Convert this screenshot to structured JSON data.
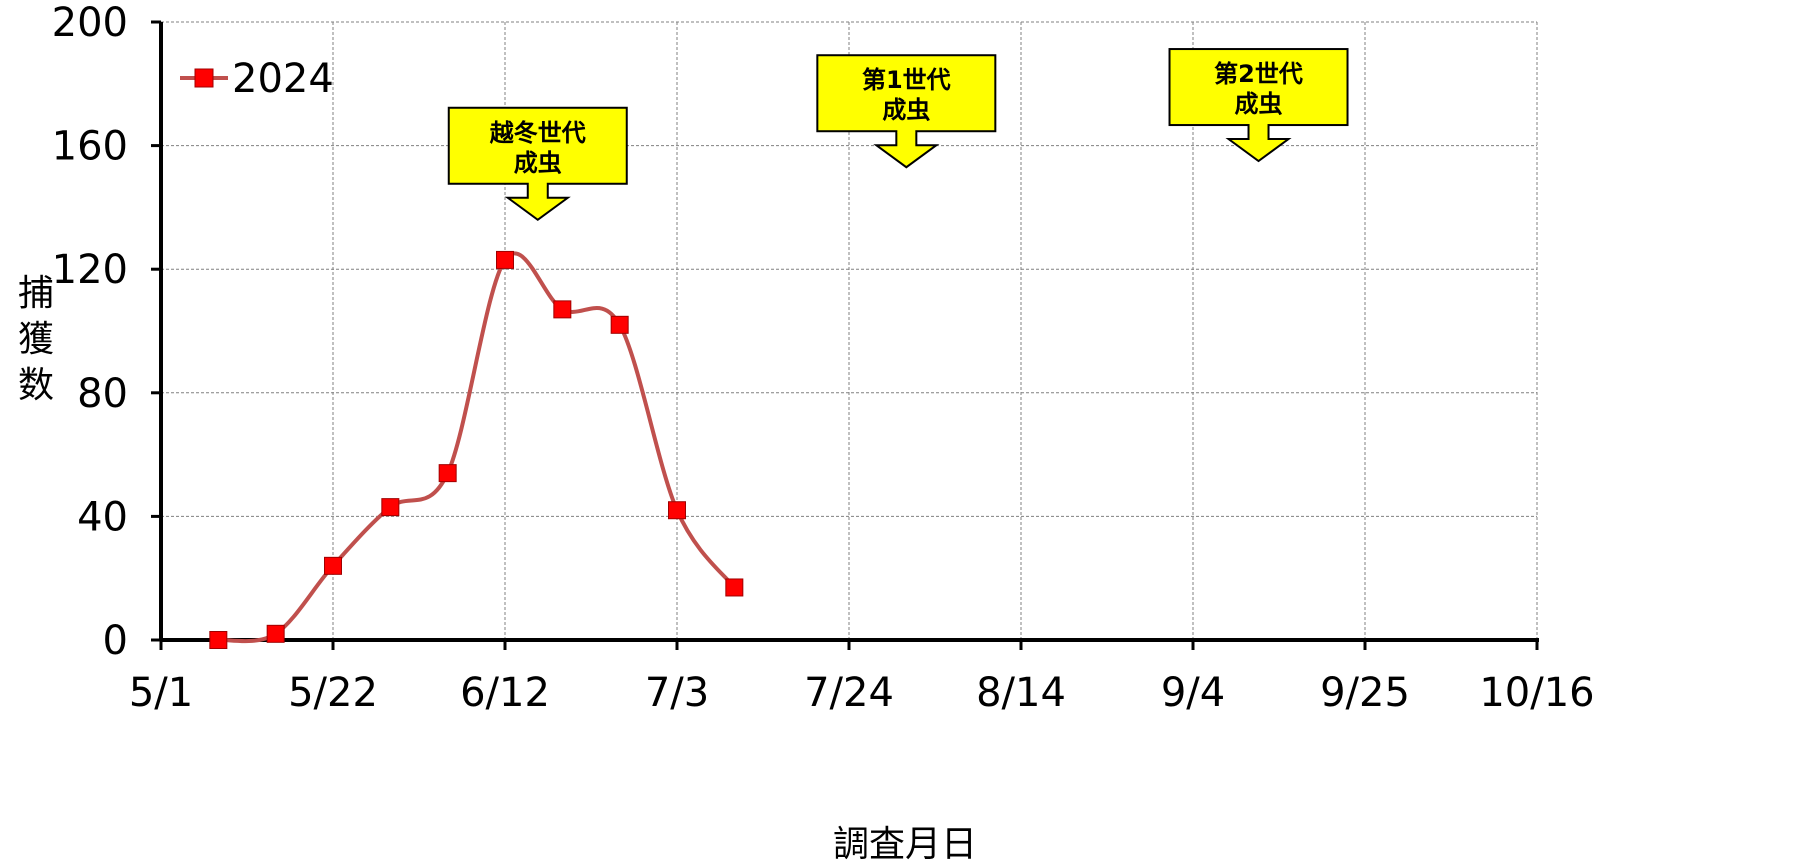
{
  "chart_data": {
    "type": "line",
    "xlabel": "調査月日",
    "ylabel": "捕獲数",
    "xlim": [
      "5/1",
      "10/16"
    ],
    "ylim": [
      0,
      200
    ],
    "x_tick_labels": [
      "5/1",
      "5/22",
      "6/12",
      "7/3",
      "7/24",
      "8/14",
      "9/4",
      "9/25",
      "10/16"
    ],
    "y_tick_labels": [
      "0",
      "40",
      "80",
      "120",
      "160",
      "200"
    ],
    "grid": true,
    "smooth": true,
    "legend": {
      "position": "top-left"
    },
    "series": [
      {
        "name": "2024",
        "color": "#c0504d",
        "marker": "square",
        "marker_color": "#ff0000",
        "points": [
          {
            "x": "5/8",
            "y": 0
          },
          {
            "x": "5/15",
            "y": 2
          },
          {
            "x": "5/22",
            "y": 24
          },
          {
            "x": "5/29",
            "y": 43
          },
          {
            "x": "6/5",
            "y": 54
          },
          {
            "x": "6/12",
            "y": 123
          },
          {
            "x": "6/19",
            "y": 107
          },
          {
            "x": "6/26",
            "y": 102
          },
          {
            "x": "7/3",
            "y": 42
          },
          {
            "x": "7/10",
            "y": 17
          }
        ]
      }
    ],
    "annotations": [
      {
        "line1": "越冬世代",
        "line2": "成虫",
        "x": "6/16",
        "arrow_tip_y": 136
      },
      {
        "line1": "第1世代",
        "line2": "成虫",
        "x": "7/31",
        "arrow_tip_y": 153
      },
      {
        "line1": "第2世代",
        "line2": "成虫",
        "x": "9/12",
        "arrow_tip_y": 155
      }
    ],
    "annotation_fill": "#ffff00"
  }
}
